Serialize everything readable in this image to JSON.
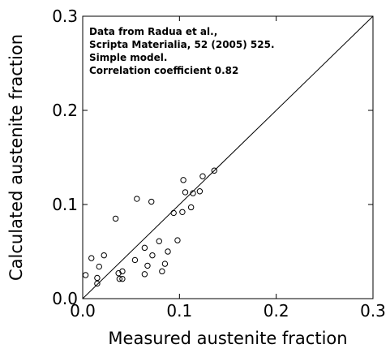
{
  "chart_data": {
    "type": "scatter",
    "xlabel": "Measured austenite fraction",
    "ylabel": "Calculated austenite fraction",
    "xlim": [
      0,
      0.3
    ],
    "ylim": [
      0,
      0.3
    ],
    "x_ticks": [
      {
        "value": 0.0,
        "label": "0.0"
      },
      {
        "value": 0.1,
        "label": "0.1"
      },
      {
        "value": 0.2,
        "label": "0.2"
      },
      {
        "value": 0.3,
        "label": "0.3"
      }
    ],
    "y_ticks": [
      {
        "value": 0.0,
        "label": "0.0"
      },
      {
        "value": 0.1,
        "label": "0.1"
      },
      {
        "value": 0.2,
        "label": "0.2"
      },
      {
        "value": 0.3,
        "label": "0.3"
      }
    ],
    "grid": false,
    "reference_line": {
      "from": [
        0,
        0
      ],
      "to": [
        0.3,
        0.3
      ]
    },
    "annotations": [
      "Data from Radua et al.,",
      "Scripta Materialia, 52 (2005) 525.",
      "Simple model.",
      "Correlation coefficient 0.82"
    ],
    "points": [
      {
        "x": 0.003,
        "y": 0.025
      },
      {
        "x": 0.009,
        "y": 0.043
      },
      {
        "x": 0.015,
        "y": 0.022
      },
      {
        "x": 0.015,
        "y": 0.016
      },
      {
        "x": 0.017,
        "y": 0.034
      },
      {
        "x": 0.022,
        "y": 0.046
      },
      {
        "x": 0.034,
        "y": 0.085
      },
      {
        "x": 0.037,
        "y": 0.027
      },
      {
        "x": 0.038,
        "y": 0.021
      },
      {
        "x": 0.041,
        "y": 0.029
      },
      {
        "x": 0.041,
        "y": 0.021
      },
      {
        "x": 0.054,
        "y": 0.041
      },
      {
        "x": 0.056,
        "y": 0.106
      },
      {
        "x": 0.064,
        "y": 0.054
      },
      {
        "x": 0.064,
        "y": 0.026
      },
      {
        "x": 0.067,
        "y": 0.035
      },
      {
        "x": 0.071,
        "y": 0.103
      },
      {
        "x": 0.072,
        "y": 0.046
      },
      {
        "x": 0.079,
        "y": 0.061
      },
      {
        "x": 0.082,
        "y": 0.029
      },
      {
        "x": 0.085,
        "y": 0.037
      },
      {
        "x": 0.088,
        "y": 0.05
      },
      {
        "x": 0.094,
        "y": 0.091
      },
      {
        "x": 0.098,
        "y": 0.062
      },
      {
        "x": 0.103,
        "y": 0.092
      },
      {
        "x": 0.104,
        "y": 0.126
      },
      {
        "x": 0.106,
        "y": 0.113
      },
      {
        "x": 0.112,
        "y": 0.097
      },
      {
        "x": 0.114,
        "y": 0.112
      },
      {
        "x": 0.121,
        "y": 0.114
      },
      {
        "x": 0.124,
        "y": 0.13
      },
      {
        "x": 0.136,
        "y": 0.136
      }
    ]
  }
}
